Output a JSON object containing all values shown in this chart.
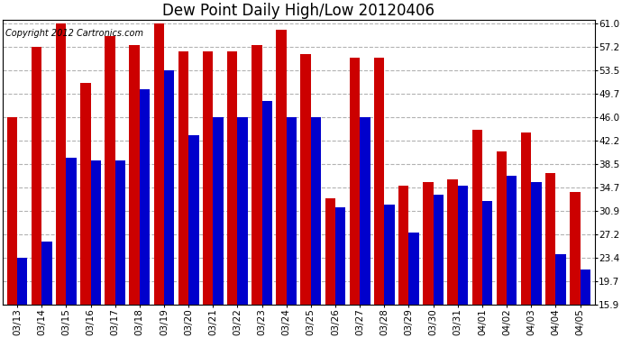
{
  "title": "Dew Point Daily High/Low 20120406",
  "copyright": "Copyright 2012 Cartronics.com",
  "dates": [
    "03/13",
    "03/14",
    "03/15",
    "03/16",
    "03/17",
    "03/18",
    "03/19",
    "03/20",
    "03/21",
    "03/22",
    "03/23",
    "03/24",
    "03/25",
    "03/26",
    "03/27",
    "03/28",
    "03/29",
    "03/30",
    "03/31",
    "04/01",
    "04/02",
    "04/03",
    "04/04",
    "04/05"
  ],
  "highs": [
    46.0,
    57.2,
    61.0,
    51.5,
    59.0,
    57.5,
    61.0,
    56.5,
    56.5,
    56.5,
    57.5,
    60.0,
    56.0,
    33.0,
    55.5,
    55.5,
    35.0,
    35.5,
    36.0,
    44.0,
    40.5,
    43.5,
    37.0,
    34.0
  ],
  "lows": [
    23.4,
    26.0,
    39.5,
    39.0,
    39.0,
    50.5,
    53.5,
    43.0,
    46.0,
    46.0,
    48.5,
    46.0,
    46.0,
    31.5,
    46.0,
    32.0,
    27.5,
    33.5,
    35.0,
    32.5,
    36.5,
    35.5,
    24.0,
    21.5
  ],
  "high_color": "#cc0000",
  "low_color": "#0000cc",
  "background_color": "#ffffff",
  "yticks": [
    15.9,
    19.7,
    23.4,
    27.2,
    30.9,
    34.7,
    38.5,
    42.2,
    46.0,
    49.7,
    53.5,
    57.2,
    61.0
  ],
  "ymin": 15.9,
  "ymax": 61.0,
  "grid_color": "#aaaaaa",
  "title_fontsize": 12,
  "tick_fontsize": 7.5,
  "copyright_fontsize": 7
}
